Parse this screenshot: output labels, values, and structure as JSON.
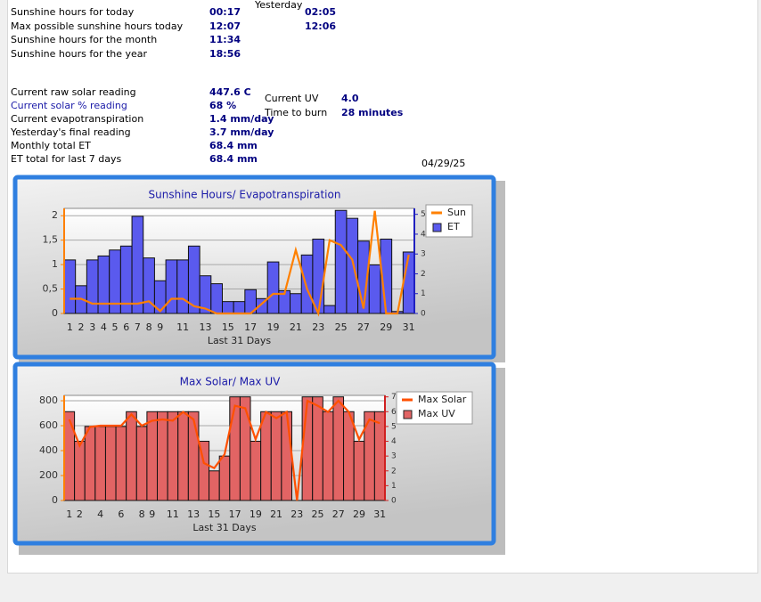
{
  "yesterday_header": "Yesterday",
  "sunshine": [
    {
      "label": "Sunshine hours for today",
      "value": "00:17",
      "yesterday": "02:05"
    },
    {
      "label": "Max possible sunshine hours today",
      "value": "12:07",
      "yesterday": "12:06"
    },
    {
      "label": "Sunshine hours for the month",
      "value": "11:34"
    },
    {
      "label": "Sunshine hours for the year",
      "value": "18:56"
    }
  ],
  "readings": [
    {
      "label": "Current raw solar reading",
      "value": "447.6 C"
    },
    {
      "label": "Current solar % reading",
      "value": "68 %"
    },
    {
      "label": "Current evapotranspiration",
      "value": "1.4 mm/day"
    },
    {
      "label": "Yesterday's final reading",
      "value": "3.7 mm/day"
    },
    {
      "label": "Monthly total ET",
      "value": "68.4 mm"
    },
    {
      "label": "ET total for last 7 days",
      "value": "68.4 mm"
    }
  ],
  "uv": [
    {
      "label": "Current UV",
      "value": "4.0"
    },
    {
      "label": "Time to burn",
      "value": "28 minutes"
    }
  ],
  "date": "04/29/25",
  "chart_data": [
    {
      "type": "combo",
      "title": "Sunshine Hours/ Evapotranspiration",
      "x_label": "Last 31 Days",
      "categories": [
        "1",
        "2",
        "3",
        "4",
        "5",
        "6",
        "7",
        "8",
        "9",
        null,
        "11",
        null,
        "13",
        null,
        "15",
        null,
        "17",
        null,
        "19",
        null,
        "21",
        null,
        "23",
        null,
        "25",
        null,
        "27",
        null,
        "29",
        null,
        "31"
      ],
      "series": [
        {
          "name": "Sun",
          "color": "#ff8000",
          "kind": "line",
          "values": [
            0.3,
            0.3,
            0.2,
            0.2,
            0.2,
            0.2,
            0.2,
            0.25,
            0.05,
            0.3,
            0.3,
            0.15,
            0.1,
            0,
            0,
            0,
            0,
            0.2,
            0.4,
            0.4,
            1.3,
            0.5,
            0,
            1.5,
            1.4,
            1.1,
            0.1,
            2.1,
            0,
            0,
            1.2
          ]
        },
        {
          "name": "ET",
          "color": "#5a5aee",
          "kind": "bar",
          "axis": "y2",
          "values": [
            2.7,
            1.4,
            2.7,
            2.9,
            3.2,
            3.4,
            4.9,
            2.8,
            1.65,
            2.7,
            2.7,
            3.4,
            1.9,
            1.5,
            0.6,
            0.6,
            1.2,
            0.75,
            2.6,
            1.15,
            1.0,
            2.95,
            3.75,
            0.4,
            5.2,
            4.8,
            3.65,
            2.45,
            3.75,
            0.1,
            3.1
          ]
        }
      ],
      "ylim": [
        0,
        2.15
      ],
      "yticks": [
        0,
        {
          "value": 0.5,
          "label": "0,5"
        },
        1,
        {
          "value": 1.5,
          "label": "1,5"
        },
        2
      ],
      "y2lim": [
        0,
        5.3
      ],
      "y2ticks": [
        0,
        1,
        2,
        3,
        4,
        5
      ],
      "ycolor": "#ff8000",
      "y2color": "#2020c0",
      "grid": true,
      "legend": "right"
    },
    {
      "type": "combo",
      "title": "Max Solar/ Max UV",
      "x_label": "Last 31 Days",
      "categories": [
        "1",
        "2",
        null,
        "4",
        null,
        "6",
        null,
        "8",
        "9",
        null,
        "11",
        null,
        "13",
        null,
        "15",
        null,
        "17",
        null,
        "19",
        null,
        "21",
        null,
        "23",
        null,
        "25",
        null,
        "27",
        null,
        "29",
        null,
        "31"
      ],
      "series": [
        {
          "name": "Max Solar",
          "color": "#ff5000",
          "kind": "line",
          "values": [
            650,
            440,
            590,
            600,
            600,
            600,
            690,
            600,
            640,
            650,
            640,
            710,
            650,
            300,
            260,
            370,
            760,
            740,
            490,
            710,
            660,
            710,
            0,
            800,
            760,
            710,
            800,
            710,
            490,
            650,
            620
          ]
        },
        {
          "name": "Max UV",
          "color": "#e26464",
          "kind": "bar",
          "axis": "y2",
          "values": [
            6,
            4,
            5,
            5,
            5,
            5,
            6,
            5,
            6,
            6,
            6,
            6,
            6,
            4,
            2,
            3,
            7,
            7,
            4,
            6,
            6,
            6,
            0,
            7,
            7,
            6,
            7,
            6,
            4,
            6,
            6
          ]
        }
      ],
      "ylim": [
        0,
        843
      ],
      "yticks": [
        0,
        200,
        400,
        600,
        800
      ],
      "y2lim": [
        0,
        7.1
      ],
      "y2ticks": [
        0,
        1,
        2,
        3,
        4,
        5,
        6,
        7
      ],
      "ycolor": "#ff8000",
      "y2color": "#d02020",
      "grid": true,
      "legend": "right"
    }
  ]
}
